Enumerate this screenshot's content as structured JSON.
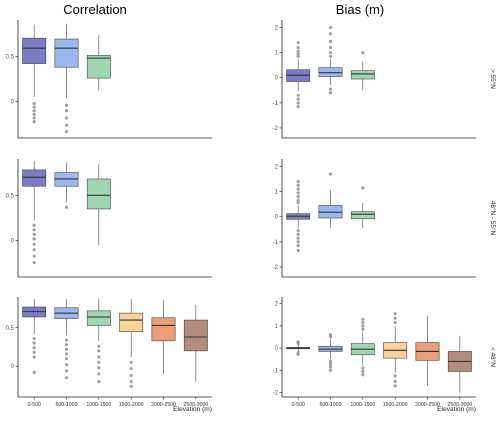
{
  "column_titles": [
    "Correlation",
    "Bias (m)"
  ],
  "row_labels": [
    "> 55°N",
    "48°N - 55°N",
    "< 48°N"
  ],
  "x_axis_label": "Elevation (m)",
  "elevation_bins": [
    "0-500",
    "500-1000",
    "1000-1500",
    "1500-2000",
    "2000-2500",
    "2500-3000"
  ],
  "colors": [
    "#7b7bc6",
    "#9ab8ee",
    "#9fd6b0",
    "#fdd29a",
    "#ec9e78",
    "#b38c7c"
  ],
  "outlier_color": "#8a8a8a",
  "chart_data": [
    {
      "type": "box",
      "metric": "Correlation",
      "row": "> 55°N",
      "ylim": [
        -0.4,
        0.9
      ],
      "yticks": [
        0,
        0.5
      ],
      "boxes": [
        {
          "category": "0-500",
          "whisker_low": 0.05,
          "q1": 0.42,
          "median": 0.59,
          "q3": 0.7,
          "whisker_high": 0.85,
          "outliers": [
            -0.02,
            -0.06,
            -0.1,
            -0.14,
            -0.18,
            -0.22
          ]
        },
        {
          "category": "500-1000",
          "whisker_low": 0.04,
          "q1": 0.38,
          "median": 0.59,
          "q3": 0.69,
          "whisker_high": 0.86,
          "outliers": [
            -0.04,
            -0.1,
            -0.18,
            -0.26,
            -0.33
          ]
        },
        {
          "category": "1000-1500",
          "whisker_low": 0.12,
          "q1": 0.26,
          "median": 0.48,
          "q3": 0.51,
          "whisker_high": 0.73,
          "outliers": []
        }
      ]
    },
    {
      "type": "box",
      "metric": "Bias (m)",
      "row": "> 55°N",
      "ylim": [
        -2.4,
        2.3
      ],
      "yticks": [
        -2,
        -1,
        0,
        1,
        2
      ],
      "boxes": [
        {
          "category": "0-500",
          "whisker_low": -0.55,
          "q1": -0.15,
          "median": 0.1,
          "q3": 0.32,
          "whisker_high": 0.75,
          "outliers": [
            0.85,
            0.95,
            1.05,
            1.2,
            1.4,
            -0.7,
            -0.85,
            -1.0,
            -1.15
          ]
        },
        {
          "category": "500-1000",
          "whisker_low": -0.3,
          "q1": 0.05,
          "median": 0.2,
          "q3": 0.4,
          "whisker_high": 0.75,
          "outliers": [
            0.85,
            1.0,
            1.2,
            1.45,
            1.75,
            2.0,
            -0.45,
            -0.6
          ]
        },
        {
          "category": "1000-1500",
          "whisker_low": -0.5,
          "q1": -0.05,
          "median": 0.15,
          "q3": 0.28,
          "whisker_high": 0.65,
          "outliers": [
            1.0
          ]
        }
      ]
    },
    {
      "type": "box",
      "metric": "Correlation",
      "row": "48°N - 55°N",
      "ylim": [
        -0.4,
        0.9
      ],
      "yticks": [
        0,
        0.5
      ],
      "boxes": [
        {
          "category": "0-500",
          "whisker_low": 0.22,
          "q1": 0.6,
          "median": 0.7,
          "q3": 0.78,
          "whisker_high": 0.88,
          "outliers": [
            0.17,
            0.12,
            0.07,
            0.02,
            -0.04,
            -0.1,
            -0.17,
            -0.24
          ]
        },
        {
          "category": "500-1000",
          "whisker_low": 0.42,
          "q1": 0.6,
          "median": 0.68,
          "q3": 0.75,
          "whisker_high": 0.86,
          "outliers": [
            0.37
          ]
        },
        {
          "category": "1000-1500",
          "whisker_low": -0.05,
          "q1": 0.35,
          "median": 0.5,
          "q3": 0.68,
          "whisker_high": 0.84,
          "outliers": []
        }
      ]
    },
    {
      "type": "box",
      "metric": "Bias (m)",
      "row": "48°N - 55°N",
      "ylim": [
        -2.4,
        2.3
      ],
      "yticks": [
        -2,
        -1,
        0,
        1,
        2
      ],
      "boxes": [
        {
          "category": "0-500",
          "whisker_low": -0.45,
          "q1": -0.1,
          "median": 0.02,
          "q3": 0.12,
          "whisker_high": 0.45,
          "outliers": [
            0.55,
            0.65,
            0.8,
            0.95,
            1.1,
            1.25,
            1.4,
            -0.55,
            -0.7,
            -0.85,
            -1.0,
            -1.15,
            -1.35
          ]
        },
        {
          "category": "500-1000",
          "whisker_low": -0.45,
          "q1": -0.05,
          "median": 0.18,
          "q3": 0.45,
          "whisker_high": 1.05,
          "outliers": [
            1.7
          ]
        },
        {
          "category": "1000-1500",
          "whisker_low": -0.45,
          "q1": -0.08,
          "median": 0.1,
          "q3": 0.2,
          "whisker_high": 0.55,
          "outliers": [
            1.15
          ]
        }
      ]
    },
    {
      "type": "box",
      "metric": "Correlation",
      "row": "< 48°N",
      "ylim": [
        -0.4,
        0.9
      ],
      "yticks": [
        0,
        0.5
      ],
      "boxes": [
        {
          "category": "0-500",
          "whisker_low": 0.42,
          "q1": 0.64,
          "median": 0.71,
          "q3": 0.77,
          "whisker_high": 0.87,
          "outliers": [
            0.36,
            0.3,
            0.24,
            0.18,
            0.12,
            -0.08
          ]
        },
        {
          "category": "500-1000",
          "whisker_low": 0.4,
          "q1": 0.62,
          "median": 0.69,
          "q3": 0.76,
          "whisker_high": 0.87,
          "outliers": [
            0.34,
            0.28,
            0.22,
            0.16,
            0.1,
            0.02,
            -0.06,
            -0.15
          ]
        },
        {
          "category": "1000-1500",
          "whisker_low": 0.33,
          "q1": 0.53,
          "median": 0.64,
          "q3": 0.72,
          "whisker_high": 0.88,
          "outliers": [
            0.26,
            0.2,
            0.12,
            0.05,
            -0.02,
            -0.1,
            -0.2
          ]
        },
        {
          "category": "1500-2000",
          "whisker_low": 0.12,
          "q1": 0.45,
          "median": 0.6,
          "q3": 0.69,
          "whisker_high": 0.87,
          "outliers": [
            0.05,
            -0.03,
            -0.12,
            -0.2,
            -0.26
          ]
        },
        {
          "category": "2000-2500",
          "whisker_low": -0.1,
          "q1": 0.33,
          "median": 0.53,
          "q3": 0.63,
          "whisker_high": 0.86,
          "outliers": []
        },
        {
          "category": "2500-3000",
          "whisker_low": -0.2,
          "q1": 0.2,
          "median": 0.38,
          "q3": 0.6,
          "whisker_high": 0.8,
          "outliers": []
        }
      ]
    },
    {
      "type": "box",
      "metric": "Bias (m)",
      "row": "< 48°N",
      "ylim": [
        -2.2,
        2.3
      ],
      "yticks": [
        -2,
        -1,
        0,
        1,
        2
      ],
      "boxes": [
        {
          "category": "0-500",
          "whisker_low": -0.15,
          "q1": -0.03,
          "median": 0.0,
          "q3": 0.03,
          "whisker_high": 0.15,
          "outliers": [
            0.2,
            0.28,
            -0.2,
            -0.28
          ]
        },
        {
          "category": "500-1000",
          "whisker_low": -0.5,
          "q1": -0.15,
          "median": -0.05,
          "q3": 0.08,
          "whisker_high": 0.4,
          "outliers": [
            0.5,
            0.6,
            -0.6,
            -0.72,
            -0.85,
            -1.0
          ]
        },
        {
          "category": "1000-1500",
          "whisker_low": -0.8,
          "q1": -0.3,
          "median": -0.05,
          "q3": 0.2,
          "whisker_high": 0.75,
          "outliers": [
            0.85,
            1.0,
            1.15,
            1.3,
            -0.9,
            -1.05,
            -1.2
          ]
        },
        {
          "category": "1500-2000",
          "whisker_low": -1.1,
          "q1": -0.45,
          "median": -0.1,
          "q3": 0.25,
          "whisker_high": 1.0,
          "outliers": [
            1.15,
            1.35,
            1.55,
            -1.25,
            -1.5,
            -1.7
          ]
        },
        {
          "category": "2000-2500",
          "whisker_low": -1.7,
          "q1": -0.55,
          "median": -0.15,
          "q3": 0.25,
          "whisker_high": 1.45,
          "outliers": []
        },
        {
          "category": "2500-3000",
          "whisker_low": -2.0,
          "q1": -1.05,
          "median": -0.6,
          "q3": -0.15,
          "whisker_high": 0.55,
          "outliers": []
        }
      ]
    }
  ]
}
